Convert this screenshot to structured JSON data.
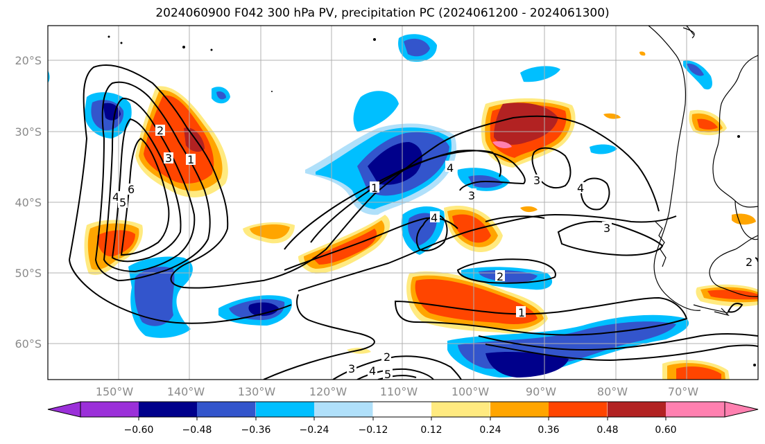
{
  "title": "2024060900 F042 300 hPa PV, precipitation PC (2024061200 - 2024061300)",
  "lat_labels": [
    "20°S",
    "30°S",
    "40°S",
    "50°S",
    "60°S"
  ],
  "lon_labels": [
    "150°W",
    "140°W",
    "130°W",
    "120°W",
    "110°W",
    "100°W",
    "90°W",
    "80°W",
    "70°W"
  ],
  "colorbar": {
    "tick_labels": [
      "−0.60",
      "−0.48",
      "−0.36",
      "−0.24",
      "−0.12",
      "0.12",
      "0.24",
      "0.36",
      "0.48",
      "0.60"
    ],
    "colors": [
      "#9b30d9",
      "#00008b",
      "#3355cc",
      "#00bfff",
      "#b0e0fa",
      "#ffffff",
      "#ffea80",
      "#ffa500",
      "#ff4500",
      "#b22222",
      "#ff80b0"
    ]
  },
  "contour_labels": [
    "1",
    "2",
    "3",
    "4",
    "5",
    "6",
    "1",
    "2",
    "3",
    "4",
    "1",
    "2",
    "3",
    "4",
    "3",
    "4",
    "2",
    "3",
    "4",
    "5",
    "2",
    "3",
    "4"
  ],
  "colors": {
    "grid": "#b0b0b0",
    "contour": "#000000",
    "coast": "#000000"
  }
}
